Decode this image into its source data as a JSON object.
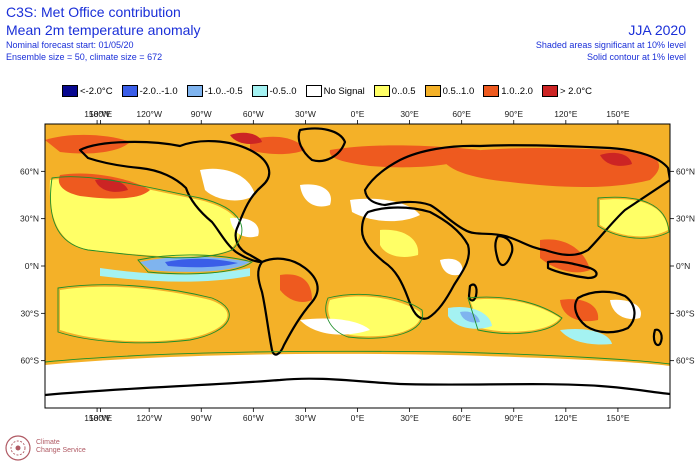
{
  "header": {
    "title_line1": "C3S: Met Office contribution",
    "title_line2": "Mean 2m temperature anomaly",
    "forecast_start": "Nominal forecast start: 01/05/20",
    "ensemble": "Ensemble size = 50, climate size = 672",
    "season": "JJA 2020",
    "note_shaded": "Shaded areas significant at 10% level",
    "note_contour": "Solid contour at 1% level"
  },
  "legend": [
    {
      "label": "<-2.0°C",
      "color": "#08088f"
    },
    {
      "label": "-2.0..-1.0",
      "color": "#3a5ee8"
    },
    {
      "label": "-1.0..-0.5",
      "color": "#7fb4ef"
    },
    {
      "label": "-0.5..0",
      "color": "#a4f2f2"
    },
    {
      "label": "No Signal",
      "color": "#ffffff"
    },
    {
      "label": "0..0.5",
      "color": "#ffff66"
    },
    {
      "label": "0.5..1.0",
      "color": "#f4b128"
    },
    {
      "label": "1.0..2.0",
      "color": "#ee5a1f"
    },
    {
      "label": "> 2.0°C",
      "color": "#cc2424"
    }
  ],
  "map": {
    "projection": "equirectangular",
    "lon_range": [
      -180,
      180
    ],
    "lat_range": [
      -90,
      90
    ],
    "lon_ticks": [
      "180°E",
      "150°W",
      "120°W",
      "90°W",
      "60°W",
      "30°W",
      "0°E",
      "30°E",
      "60°E",
      "90°E",
      "120°E",
      "150°E"
    ],
    "lat_ticks": [
      "60°N",
      "30°N",
      "0°N",
      "30°S",
      "60°S"
    ],
    "colors": {
      "land_outline": "#000000",
      "contour": "#1f8f2a"
    }
  },
  "logo": {
    "line1": "Climate",
    "line2": "Change Service"
  }
}
